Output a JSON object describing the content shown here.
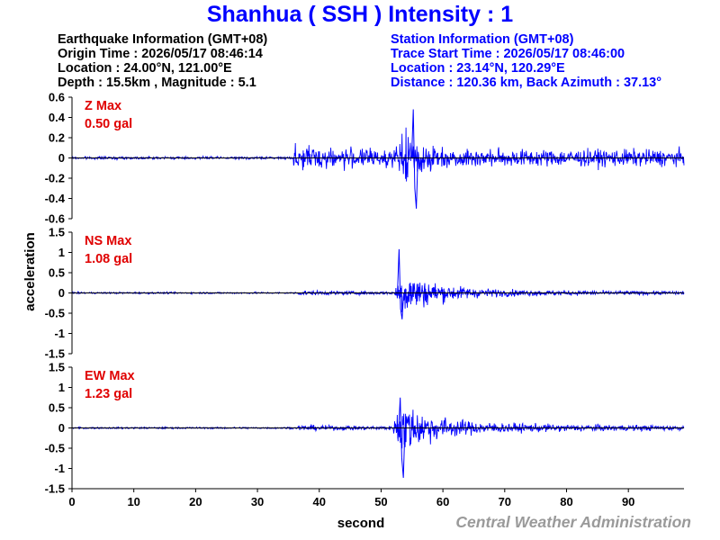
{
  "title": "Shanhua ( SSH ) Intensity : 1",
  "earthquake_info": {
    "heading": "Earthquake Information  (GMT+08)",
    "origin_time": "Origin Time : 2026/05/17 08:46:14",
    "location": "Location : 24.00°N, 121.00°E",
    "depth_magnitude": "Depth : 15.5km , Magnitude : 5.1"
  },
  "station_info": {
    "heading": "Station Information  (GMT+08)",
    "trace_start": "Trace Start Time : 2026/05/17 08:46:00",
    "location": "Location : 23.14°N, 120.29°E",
    "distance": "Distance : 120.36 km, Back Azimuth : 37.13°"
  },
  "credit": "Central Weather Administration",
  "chart_data": {
    "type": "line",
    "xlabel": "second",
    "ylabel": "acceleration",
    "xlim": [
      0,
      99
    ],
    "xticks": [
      0,
      10,
      20,
      30,
      40,
      50,
      60,
      70,
      80,
      90
    ],
    "line_color": "#0000ff",
    "max_label_color": "#e00000",
    "panels": [
      {
        "component": "Z",
        "max_title": "Z Max",
        "max_value": "0.50 gal",
        "ylim": [
          -0.6,
          0.6
        ],
        "yticks": [
          0.6,
          0.4,
          0.2,
          0,
          -0.2,
          -0.4,
          -0.6
        ],
        "noise_level": 0.012,
        "p_arrival": 35.8,
        "p_amplitude": 0.13,
        "s_arrival": 52.5,
        "peak_time": 55.2,
        "peak": 0.48,
        "trough": -0.5,
        "coda_level": 0.045
      },
      {
        "component": "NS",
        "max_title": "NS Max",
        "max_value": "1.08 gal",
        "ylim": [
          -1.5,
          1.5
        ],
        "yticks": [
          1.5,
          1,
          0.5,
          0,
          -0.5,
          -1,
          -1.5
        ],
        "noise_level": 0.02,
        "p_arrival": 36.5,
        "p_amplitude": 0.06,
        "s_arrival": 52.3,
        "peak_time": 52.9,
        "peak": 1.08,
        "trough": -0.65,
        "coda_level": 0.09
      },
      {
        "component": "EW",
        "max_title": "EW Max",
        "max_value": "1.23 gal",
        "ylim": [
          -1.5,
          1.5
        ],
        "yticks": [
          1.5,
          1,
          0.5,
          0,
          -0.5,
          -1,
          -1.5
        ],
        "noise_level": 0.02,
        "p_arrival": 36.5,
        "p_amplitude": 0.07,
        "s_arrival": 52.0,
        "peak_time": 53.1,
        "peak": 0.75,
        "trough": -1.23,
        "coda_level": 0.13
      }
    ]
  }
}
